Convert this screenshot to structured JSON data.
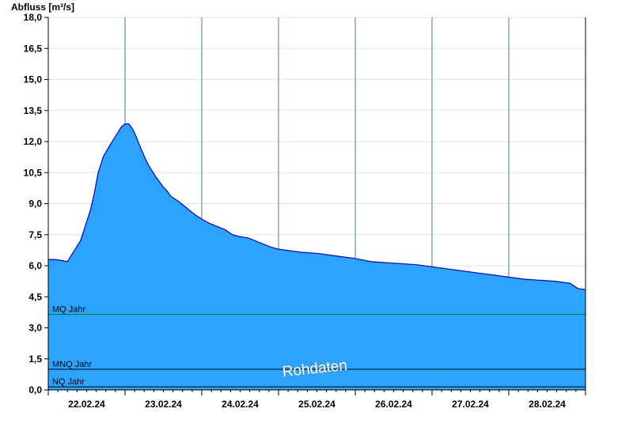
{
  "chart_data": {
    "type": "area",
    "ylabel": "Abfluss [m³/s]",
    "ylim": [
      0,
      18
    ],
    "y_ticks": [
      "0,0",
      "1,5",
      "3,0",
      "4,5",
      "6,0",
      "7,5",
      "9,0",
      "10,5",
      "12,0",
      "13,5",
      "15,0",
      "16,5",
      "18,0"
    ],
    "y_tick_values": [
      0,
      1.5,
      3,
      4.5,
      6,
      7.5,
      9,
      10.5,
      12,
      13.5,
      15,
      16.5,
      18
    ],
    "x_days": [
      "22.02.24",
      "23.02.24",
      "24.02.24",
      "25.02.24",
      "26.02.24",
      "27.02.24",
      "28.02.24"
    ],
    "xlim_days": [
      0,
      7
    ],
    "grid": true,
    "fill_color": "#2ba4ff",
    "line_color": "#0000cc",
    "series": [
      {
        "x": [
          0,
          0.1,
          0.25,
          0.3,
          0.35,
          0.42,
          0.48,
          0.55,
          0.6,
          0.65,
          0.72,
          0.8,
          0.85,
          0.9,
          0.95,
          1.0,
          1.05,
          1.1,
          1.15,
          1.18,
          1.25,
          1.3,
          1.35,
          1.4,
          1.45,
          1.5,
          1.55,
          1.6,
          1.7,
          1.8,
          1.9,
          2.0,
          2.1,
          2.2,
          2.3,
          2.4,
          2.5,
          2.6,
          2.7,
          2.8,
          2.9,
          3.0,
          3.1,
          3.2,
          3.3,
          3.5,
          3.6,
          3.7,
          3.8,
          3.9,
          4.0,
          4.2,
          4.4,
          4.6,
          4.8,
          5.0,
          5.2,
          5.4,
          5.6,
          5.8,
          6.0,
          6.2,
          6.4,
          6.6,
          6.8,
          6.9,
          7.0
        ],
        "y": [
          6.3,
          6.3,
          6.2,
          6.5,
          6.8,
          7.2,
          7.9,
          8.7,
          9.5,
          10.5,
          11.3,
          11.8,
          12.1,
          12.4,
          12.7,
          12.85,
          12.85,
          12.6,
          12.2,
          11.9,
          11.3,
          10.9,
          10.6,
          10.3,
          10.05,
          9.8,
          9.6,
          9.35,
          9.1,
          8.8,
          8.5,
          8.25,
          8.05,
          7.9,
          7.75,
          7.5,
          7.4,
          7.35,
          7.2,
          7.05,
          6.9,
          6.8,
          6.75,
          6.7,
          6.65,
          6.6,
          6.55,
          6.5,
          6.45,
          6.4,
          6.35,
          6.2,
          6.15,
          6.1,
          6.05,
          5.95,
          5.85,
          5.75,
          5.65,
          5.55,
          5.45,
          5.35,
          5.3,
          5.25,
          5.15,
          4.9,
          4.85
        ]
      }
    ],
    "reference_lines": [
      {
        "name": "MQ Jahr",
        "value": 3.65,
        "color": "#008000"
      },
      {
        "name": "MNQ Jahr",
        "value": 1.0,
        "color": "#000000"
      },
      {
        "name": "NQ Jahr",
        "value": 0.15,
        "color": "#000000"
      }
    ],
    "watermark": "Rohdaten"
  }
}
